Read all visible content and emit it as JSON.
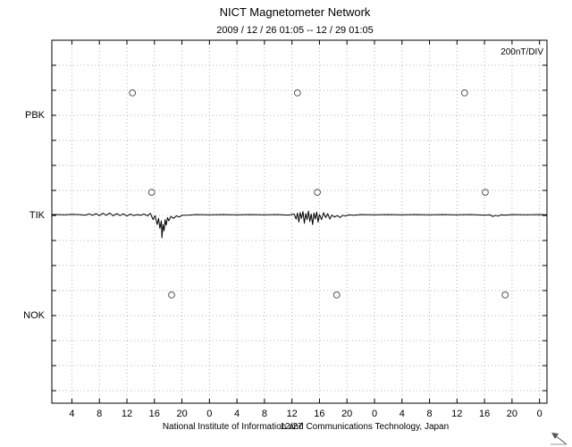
{
  "chart_data": {
    "type": "line",
    "title": "NICT Magnetometer Network",
    "subtitle": "2009 / 12 / 26  01:05 -- 12 / 29  01:05",
    "scale_label": "200nT/DIV",
    "nT_per_division": 200,
    "station_spacing_nT": 400,
    "x_start_hour": 1.083,
    "x_end_hour": 73.083,
    "x_tick_interval_hours": 4,
    "x_tick_labels": [
      "4",
      "8",
      "12",
      "16",
      "20",
      "0",
      "4",
      "8",
      "12",
      "16",
      "20",
      "0",
      "4",
      "8",
      "12",
      "16",
      "20",
      "0"
    ],
    "stations": [
      {
        "name": "PBK"
      },
      {
        "name": "TIK"
      },
      {
        "name": "NOK"
      }
    ],
    "series": [
      {
        "name": "TIK",
        "points": [
          [
            1.08,
            0
          ],
          [
            2,
            0
          ],
          [
            3,
            -1
          ],
          [
            4,
            1
          ],
          [
            5,
            0
          ],
          [
            6,
            -2
          ],
          [
            6.5,
            3
          ],
          [
            7,
            -3
          ],
          [
            7.5,
            4
          ],
          [
            8,
            -4
          ],
          [
            8.5,
            5
          ],
          [
            9,
            -3
          ],
          [
            9.5,
            6
          ],
          [
            10,
            -5
          ],
          [
            10.5,
            4
          ],
          [
            11,
            -4
          ],
          [
            11.5,
            3
          ],
          [
            12,
            -6
          ],
          [
            12.5,
            2
          ],
          [
            13,
            -4
          ],
          [
            13.5,
            0
          ],
          [
            14,
            -3
          ],
          [
            14.5,
            2
          ],
          [
            15,
            -5
          ],
          [
            15.4,
            5
          ],
          [
            15.8,
            -20
          ],
          [
            16.1,
            -5
          ],
          [
            16.4,
            -40
          ],
          [
            16.6,
            -15
          ],
          [
            16.8,
            -55
          ],
          [
            17.0,
            -25
          ],
          [
            17.1,
            -93
          ],
          [
            17.25,
            -40
          ],
          [
            17.4,
            -65
          ],
          [
            17.55,
            -20
          ],
          [
            17.7,
            -43
          ],
          [
            17.9,
            -12
          ],
          [
            18.1,
            -25
          ],
          [
            18.4,
            -8
          ],
          [
            18.8,
            -15
          ],
          [
            19.2,
            -5
          ],
          [
            19.6,
            -10
          ],
          [
            20,
            -3
          ],
          [
            21,
            -2
          ],
          [
            22,
            0
          ],
          [
            24,
            -1
          ],
          [
            26,
            0
          ],
          [
            28,
            -1
          ],
          [
            30,
            0
          ],
          [
            32,
            -1
          ],
          [
            34,
            0
          ],
          [
            35.5,
            -2
          ],
          [
            36.3,
            2
          ],
          [
            36.6,
            -18
          ],
          [
            36.8,
            6
          ],
          [
            37.0,
            -30
          ],
          [
            37.2,
            8
          ],
          [
            37.4,
            -15
          ],
          [
            37.6,
            12
          ],
          [
            37.8,
            -35
          ],
          [
            38.0,
            4
          ],
          [
            38.2,
            -20
          ],
          [
            38.4,
            14
          ],
          [
            38.6,
            -28
          ],
          [
            38.8,
            2
          ],
          [
            39.0,
            -40
          ],
          [
            39.2,
            6
          ],
          [
            39.4,
            -18
          ],
          [
            39.6,
            10
          ],
          [
            39.8,
            -30
          ],
          [
            40.0,
            0
          ],
          [
            40.3,
            -20
          ],
          [
            40.6,
            8
          ],
          [
            40.9,
            -12
          ],
          [
            41.2,
            4
          ],
          [
            41.5,
            -18
          ],
          [
            41.8,
            -2
          ],
          [
            42.2,
            -10
          ],
          [
            42.6,
            -4
          ],
          [
            43.0,
            -12
          ],
          [
            43.4,
            -3
          ],
          [
            43.8,
            -6
          ],
          [
            44.2,
            -1
          ],
          [
            45,
            -3
          ],
          [
            46,
            0
          ],
          [
            48,
            -1
          ],
          [
            50,
            0
          ],
          [
            52,
            -1
          ],
          [
            54,
            0
          ],
          [
            56,
            -1
          ],
          [
            58,
            0
          ],
          [
            60,
            -1
          ],
          [
            62,
            0
          ],
          [
            64,
            -2
          ],
          [
            64.8,
            -1
          ],
          [
            65.2,
            -8
          ],
          [
            65.6,
            -3
          ],
          [
            66,
            -6
          ],
          [
            66.4,
            -1
          ],
          [
            67,
            -2
          ],
          [
            68,
            0
          ],
          [
            70,
            -1
          ],
          [
            72,
            0
          ],
          [
            73.08,
            -1
          ]
        ]
      }
    ],
    "markers": [
      {
        "station": "PBK",
        "hour": 12.8,
        "offset_nT": 86
      },
      {
        "station": "PBK",
        "hour": 36.8,
        "offset_nT": 86
      },
      {
        "station": "PBK",
        "hour": 61.1,
        "offset_nT": 86
      },
      {
        "station": "TIK",
        "hour": 15.6,
        "offset_nT": 89
      },
      {
        "station": "TIK",
        "hour": 39.7,
        "offset_nT": 89
      },
      {
        "station": "TIK",
        "hour": 64.1,
        "offset_nT": 89
      },
      {
        "station": "NOK",
        "hour": 18.5,
        "offset_nT": 79
      },
      {
        "station": "NOK",
        "hour": 42.5,
        "offset_nT": 79
      },
      {
        "station": "NOK",
        "hour": 67.0,
        "offset_nT": 79
      }
    ],
    "footer": {
      "date_label": "12/27",
      "institute": "National Institute of Information and Communications Technology, Japan"
    }
  }
}
